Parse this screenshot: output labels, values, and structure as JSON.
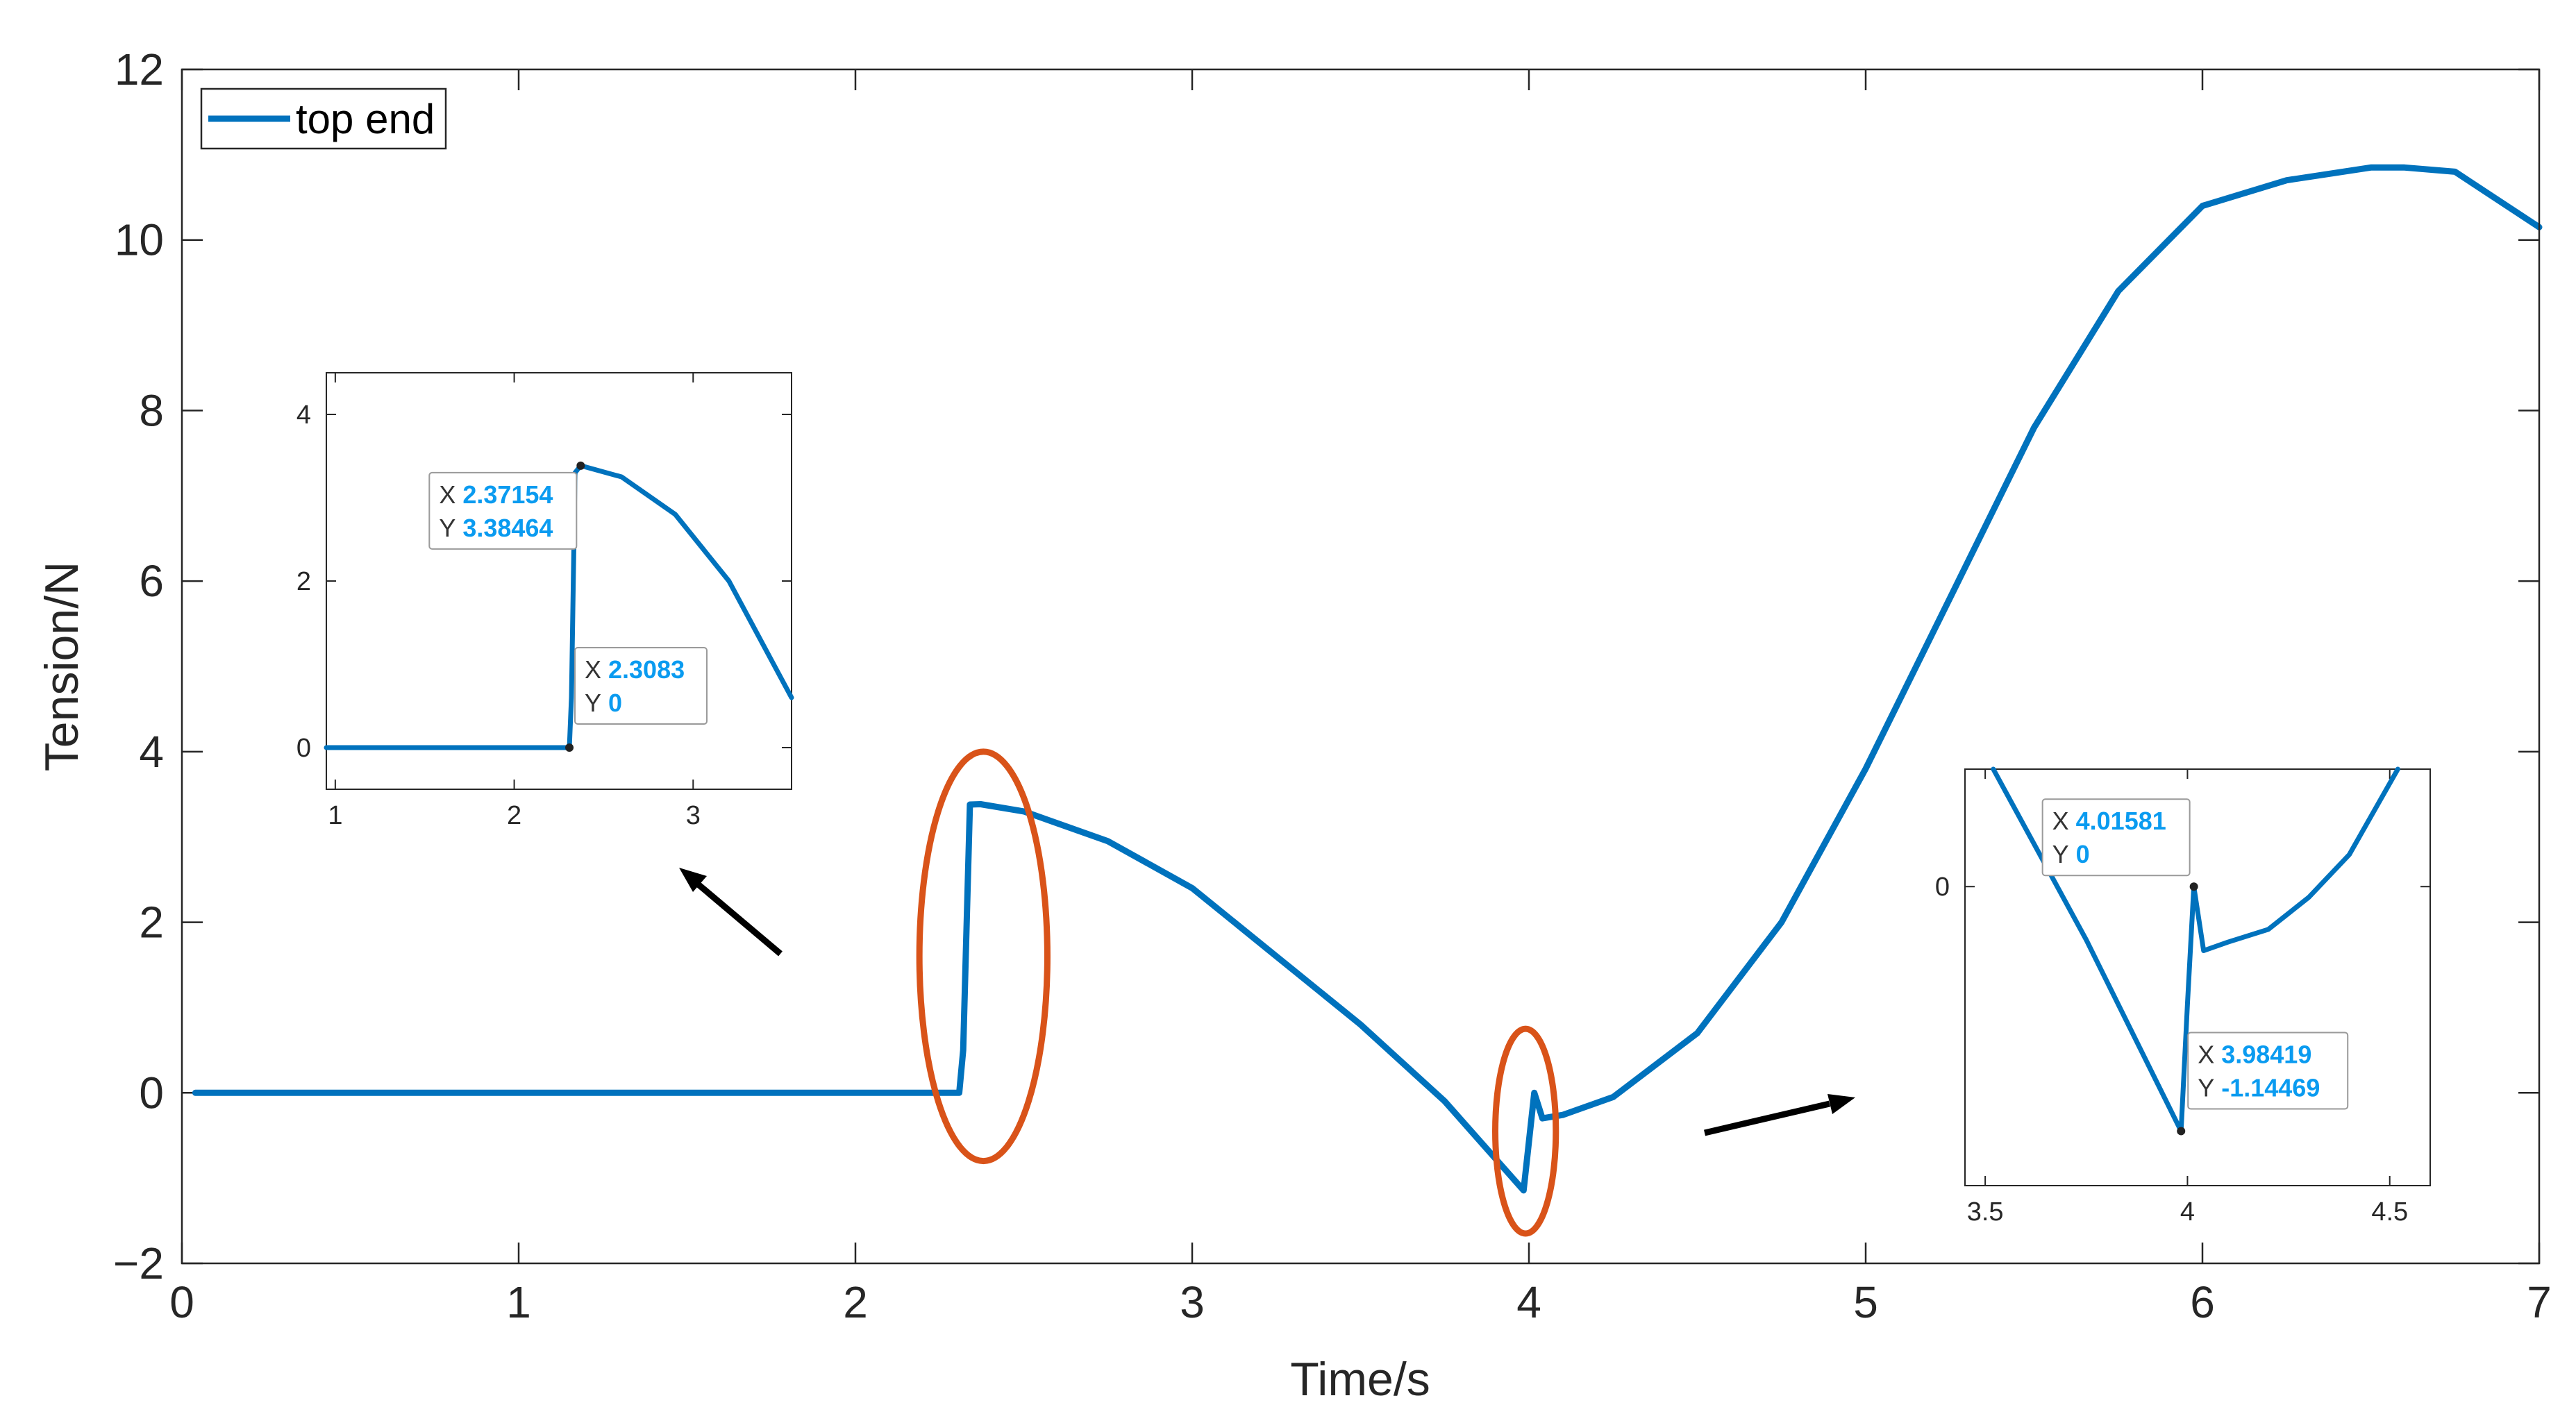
{
  "chart_data": [
    {
      "type": "line",
      "xlabel": "Time/s",
      "ylabel": "Tension/N",
      "xlim": [
        0,
        7
      ],
      "ylim": [
        -2,
        12
      ],
      "xticks": [
        "0",
        "1",
        "2",
        "3",
        "4",
        "5",
        "6",
        "7"
      ],
      "yticks": [
        "−2",
        "0",
        "2",
        "4",
        "6",
        "8",
        "10",
        "12"
      ],
      "grid": false,
      "legend_position": "top-left",
      "colors": {
        "series": "#0072bd",
        "highlight": "#d95319",
        "annotation_arrow": "#000000",
        "datatip_value": "#0a9bf0"
      },
      "series": [
        {
          "name": "top end",
          "x": [
            0.04,
            0.5,
            1.0,
            1.5,
            2.0,
            2.3083,
            2.32,
            2.34,
            2.37154,
            2.5,
            2.75,
            3.0,
            3.25,
            3.5,
            3.75,
            3.98419,
            4.01581,
            4.04,
            4.1,
            4.25,
            4.5,
            4.75,
            5.0,
            5.25,
            5.5,
            5.75,
            6.0,
            6.25,
            6.5,
            6.6,
            6.75,
            7.0
          ],
          "y": [
            0,
            0,
            0,
            0,
            0,
            0,
            0.5,
            3.38,
            3.38464,
            3.3,
            2.95,
            2.4,
            1.6,
            0.8,
            -0.1,
            -1.14469,
            0,
            -0.3,
            -0.26,
            -0.05,
            0.7,
            2.0,
            3.8,
            5.8,
            7.8,
            9.4,
            10.4,
            10.7,
            10.85,
            10.85,
            10.8,
            10.15
          ]
        }
      ],
      "highlights": [
        {
          "shape": "ellipse",
          "center_x": 2.38,
          "center_y": 1.6,
          "rx": 0.19,
          "ry": 2.4
        },
        {
          "shape": "ellipse",
          "center_x": 3.99,
          "center_y": -0.45,
          "rx": 0.09,
          "ry": 1.2
        }
      ]
    },
    {
      "type": "line",
      "xlim": [
        0.95,
        3.55
      ],
      "ylim": [
        -0.5,
        4.5
      ],
      "xticks": [
        "1",
        "2",
        "3"
      ],
      "yticks": [
        "0",
        "2",
        "4"
      ],
      "series": [
        {
          "x": [
            0.95,
            1.5,
            2.0,
            2.3083,
            2.32,
            2.34,
            2.37154,
            2.6,
            2.9,
            3.2,
            3.55
          ],
          "y": [
            0,
            0,
            0,
            0,
            0.6,
            3.3,
            3.38464,
            3.25,
            2.8,
            2.0,
            0.6
          ]
        }
      ],
      "datatips": [
        {
          "x_key": "X",
          "x_value": "2.37154",
          "y_key": "Y",
          "y_value": "3.38464",
          "px": 2.37154,
          "py": 3.38464
        },
        {
          "x_key": "X",
          "x_value": "2.3083",
          "y_key": "Y",
          "y_value": "0",
          "px": 2.3083,
          "py": 0
        }
      ]
    },
    {
      "type": "line",
      "xlim": [
        3.45,
        4.6
      ],
      "ylim": [
        -1.4,
        0.55
      ],
      "xticks": [
        "3.5",
        "4",
        "4.5"
      ],
      "yticks": [
        "0"
      ],
      "series": [
        {
          "x": [
            3.52,
            3.75,
            3.98419,
            4.0,
            4.01581,
            4.04,
            4.1,
            4.2,
            4.3,
            4.4,
            4.52
          ],
          "y": [
            0.55,
            -0.25,
            -1.14469,
            -0.55,
            0,
            -0.3,
            -0.26,
            -0.2,
            -0.05,
            0.15,
            0.55
          ]
        }
      ],
      "datatips": [
        {
          "x_key": "X",
          "x_value": "4.01581",
          "y_key": "Y",
          "y_value": "0",
          "px": 4.01581,
          "py": 0
        },
        {
          "x_key": "X",
          "x_value": "3.98419",
          "y_key": "Y",
          "y_value": "-1.14469",
          "px": 3.98419,
          "py": -1.14469
        }
      ]
    }
  ]
}
